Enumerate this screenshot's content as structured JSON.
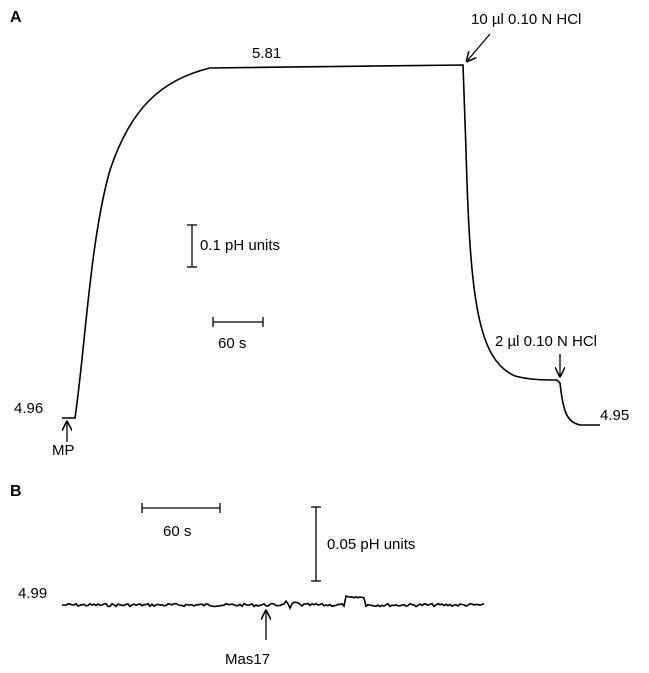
{
  "panel_a": {
    "label": "A",
    "plateau": "5.81",
    "start": "4.96",
    "end": "4.95",
    "marker": "MP",
    "addition_1": "10 µl 0.10 N HCl",
    "addition_2": "2 µl 0.10 N HCl",
    "scale_y": "0.1 pH units",
    "scale_x": "60 s"
  },
  "panel_b": {
    "label": "B",
    "start": "4.99",
    "marker": "Mas17",
    "scale_y": "0.05 pH units",
    "scale_x": "60 s"
  }
}
